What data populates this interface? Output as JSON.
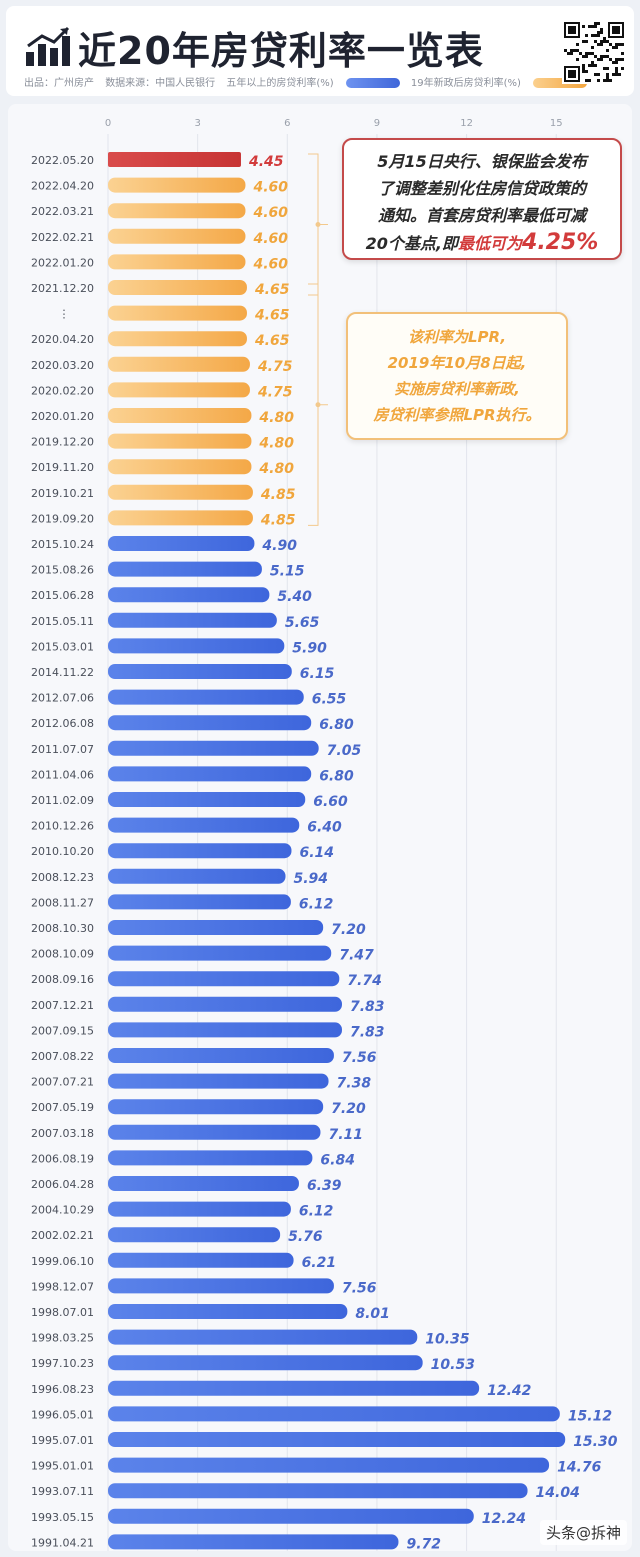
{
  "header": {
    "title": "近20年房贷利率一览表",
    "source_label": "出品：广州房产",
    "data_source": "数据来源：中国人民银行",
    "legend_blue": "五年以上的房贷利率(%)",
    "legend_orange": "19年新政后房贷利率(%)"
  },
  "callouts": {
    "first_line1": "5月15日央行、银保监会发布",
    "first_line2": "了调整差别化住房信贷政策的",
    "first_line3": "通知。首套房贷利率最低可减",
    "first_line4a": "20个基点,即",
    "first_line4b": "最低可为",
    "first_line4c": "4.25%",
    "second_line1": "该利率为LPR,",
    "second_line2": "2019年10月8日起,",
    "second_line3": "实施房贷利率新政,",
    "second_line4": "房贷利率参照LPR执行。"
  },
  "footer": {
    "credit": "头条@拆神"
  },
  "colors": {
    "blue": "#4f79e6",
    "orange": "#f7b55f",
    "red": "#d23b3b"
  },
  "chart_data": {
    "type": "bar",
    "orientation": "horizontal",
    "xlim": [
      0,
      17
    ],
    "xticks": [
      0,
      3,
      6,
      9,
      12,
      15
    ],
    "grid": true,
    "categories": [
      "2022.05.20",
      "2022.04.20",
      "2022.03.21",
      "2022.02.21",
      "2022.01.20",
      "2021.12.20",
      "⋮",
      "2020.04.20",
      "2020.03.20",
      "2020.02.20",
      "2020.01.20",
      "2019.12.20",
      "2019.11.20",
      "2019.10.21",
      "2019.09.20",
      "2015.10.24",
      "2015.08.26",
      "2015.06.28",
      "2015.05.11",
      "2015.03.01",
      "2014.11.22",
      "2012.07.06",
      "2012.06.08",
      "2011.07.07",
      "2011.04.06",
      "2011.02.09",
      "2010.12.26",
      "2010.10.20",
      "2008.12.23",
      "2008.11.27",
      "2008.10.30",
      "2008.10.09",
      "2008.09.16",
      "2007.12.21",
      "2007.09.15",
      "2007.08.22",
      "2007.07.21",
      "2007.05.19",
      "2007.03.18",
      "2006.08.19",
      "2006.04.28",
      "2004.10.29",
      "2002.02.21",
      "1999.06.10",
      "1998.12.07",
      "1998.07.01",
      "1998.03.25",
      "1997.10.23",
      "1996.08.23",
      "1996.05.01",
      "1995.07.01",
      "1995.01.01",
      "1993.07.11",
      "1993.05.15",
      "1991.04.21"
    ],
    "values": [
      4.45,
      4.6,
      4.6,
      4.6,
      4.6,
      4.65,
      4.65,
      4.65,
      4.75,
      4.75,
      4.8,
      4.8,
      4.8,
      4.85,
      4.85,
      4.9,
      5.15,
      5.4,
      5.65,
      5.9,
      6.15,
      6.55,
      6.8,
      7.05,
      6.8,
      6.6,
      6.4,
      6.14,
      5.94,
      6.12,
      7.2,
      7.47,
      7.74,
      7.83,
      7.83,
      7.56,
      7.38,
      7.2,
      7.11,
      6.84,
      6.39,
      6.12,
      5.76,
      6.21,
      7.56,
      8.01,
      10.35,
      10.53,
      12.42,
      15.12,
      15.3,
      14.76,
      14.04,
      12.24,
      9.72
    ],
    "value_labels": [
      "4.45",
      "4.60",
      "4.60",
      "4.60",
      "4.60",
      "4.65",
      "4.65",
      "4.65",
      "4.75",
      "4.75",
      "4.80",
      "4.80",
      "4.80",
      "4.85",
      "4.85",
      "4.90",
      "5.15",
      "5.40",
      "5.65",
      "5.90",
      "6.15",
      "6.55",
      "6.80",
      "7.05",
      "6.80",
      "6.60",
      "6.40",
      "6.14",
      "5.94",
      "6.12",
      "7.20",
      "7.47",
      "7.74",
      "7.83",
      "7.83",
      "7.56",
      "7.38",
      "7.20",
      "7.11",
      "6.84",
      "6.39",
      "6.12",
      "5.76",
      "6.21",
      "7.56",
      "8.01",
      "10.35",
      "10.53",
      "12.42",
      "15.12",
      "15.30",
      "14.76",
      "14.04",
      "12.24",
      "9.72"
    ],
    "groups": [
      "red",
      "orange",
      "orange",
      "orange",
      "orange",
      "orange",
      "orange",
      "orange",
      "orange",
      "orange",
      "orange",
      "orange",
      "orange",
      "orange",
      "orange",
      "blue",
      "blue",
      "blue",
      "blue",
      "blue",
      "blue",
      "blue",
      "blue",
      "blue",
      "blue",
      "blue",
      "blue",
      "blue",
      "blue",
      "blue",
      "blue",
      "blue",
      "blue",
      "blue",
      "blue",
      "blue",
      "blue",
      "blue",
      "blue",
      "blue",
      "blue",
      "blue",
      "blue",
      "blue",
      "blue",
      "blue",
      "blue",
      "blue",
      "blue",
      "blue",
      "blue",
      "blue",
      "blue",
      "blue",
      "blue"
    ]
  }
}
